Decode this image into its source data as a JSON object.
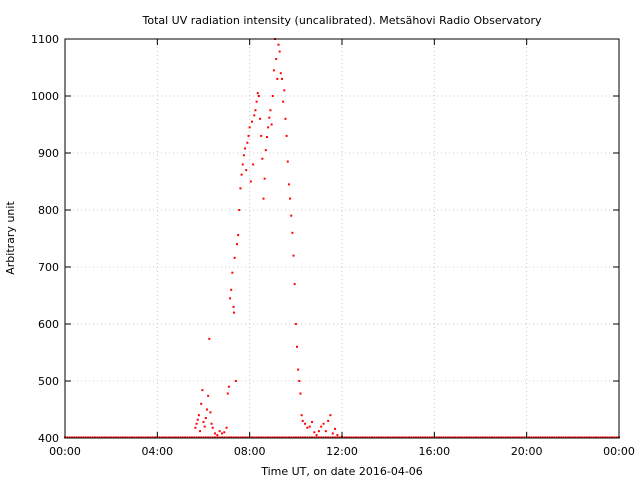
{
  "chart_data": {
    "type": "scatter",
    "title": "Total UV radiation intensity (uncalibrated). Metsähovi Radio Observatory",
    "xlabel": "Time UT, on date 2016-04-06",
    "ylabel": "Arbitrary unit",
    "xlim": [
      0,
      24
    ],
    "ylim": [
      400,
      1100
    ],
    "grid": true,
    "x_ticks": [
      {
        "value": 0,
        "label": "00:00"
      },
      {
        "value": 4,
        "label": "04:00"
      },
      {
        "value": 8,
        "label": "08:00"
      },
      {
        "value": 12,
        "label": "12:00"
      },
      {
        "value": 16,
        "label": "16:00"
      },
      {
        "value": 20,
        "label": "20:00"
      },
      {
        "value": 24,
        "label": "00:00"
      }
    ],
    "y_ticks": [
      {
        "value": 400,
        "label": "400"
      },
      {
        "value": 500,
        "label": "500"
      },
      {
        "value": 600,
        "label": "600"
      },
      {
        "value": 700,
        "label": "700"
      },
      {
        "value": 800,
        "label": "800"
      },
      {
        "value": 900,
        "label": "900"
      },
      {
        "value": 1000,
        "label": "1000"
      },
      {
        "value": 1100,
        "label": "1100"
      }
    ],
    "colors": {
      "points": "#ff0000",
      "grid": "#c8c8c8",
      "axes": "#000000"
    },
    "series": [
      {
        "baseline": {
          "value": 401,
          "x_start": 0,
          "x_end": 24,
          "step": 0.1
        },
        "points": [
          [
            5.65,
            418
          ],
          [
            5.7,
            425
          ],
          [
            5.75,
            432
          ],
          [
            5.8,
            440
          ],
          [
            5.85,
            412
          ],
          [
            5.9,
            460
          ],
          [
            5.95,
            484
          ],
          [
            6.0,
            428
          ],
          [
            6.05,
            420
          ],
          [
            6.1,
            435
          ],
          [
            6.15,
            450
          ],
          [
            6.2,
            474
          ],
          [
            6.25,
            574
          ],
          [
            6.3,
            445
          ],
          [
            6.35,
            425
          ],
          [
            6.4,
            418
          ],
          [
            6.5,
            408
          ],
          [
            6.6,
            405
          ],
          [
            6.7,
            412
          ],
          [
            6.8,
            408
          ],
          [
            6.9,
            410
          ],
          [
            7.0,
            418
          ],
          [
            7.05,
            478
          ],
          [
            7.1,
            490
          ],
          [
            7.15,
            645
          ],
          [
            7.2,
            660
          ],
          [
            7.25,
            690
          ],
          [
            7.3,
            630
          ],
          [
            7.32,
            620
          ],
          [
            7.35,
            716
          ],
          [
            7.4,
            500
          ],
          [
            7.45,
            740
          ],
          [
            7.5,
            756
          ],
          [
            7.55,
            800
          ],
          [
            7.6,
            838
          ],
          [
            7.65,
            862
          ],
          [
            7.7,
            880
          ],
          [
            7.75,
            896
          ],
          [
            7.8,
            908
          ],
          [
            7.85,
            870
          ],
          [
            7.9,
            918
          ],
          [
            7.95,
            930
          ],
          [
            8.0,
            945
          ],
          [
            8.05,
            850
          ],
          [
            8.1,
            955
          ],
          [
            8.15,
            880
          ],
          [
            8.2,
            966
          ],
          [
            8.25,
            975
          ],
          [
            8.3,
            990
          ],
          [
            8.35,
            1005
          ],
          [
            8.4,
            1000
          ],
          [
            8.45,
            960
          ],
          [
            8.5,
            930
          ],
          [
            8.55,
            890
          ],
          [
            8.6,
            820
          ],
          [
            8.65,
            855
          ],
          [
            8.7,
            905
          ],
          [
            8.75,
            928
          ],
          [
            8.8,
            945
          ],
          [
            8.85,
            962
          ],
          [
            8.9,
            975
          ],
          [
            8.95,
            950
          ],
          [
            9.0,
            1000
          ],
          [
            9.05,
            1045
          ],
          [
            9.1,
            1100
          ],
          [
            9.15,
            1065
          ],
          [
            9.2,
            1030
          ],
          [
            9.25,
            1090
          ],
          [
            9.3,
            1078
          ],
          [
            9.35,
            1040
          ],
          [
            9.4,
            1030
          ],
          [
            9.45,
            990
          ],
          [
            9.5,
            1010
          ],
          [
            9.55,
            960
          ],
          [
            9.6,
            930
          ],
          [
            9.65,
            885
          ],
          [
            9.7,
            845
          ],
          [
            9.75,
            820
          ],
          [
            9.8,
            790
          ],
          [
            9.85,
            760
          ],
          [
            9.9,
            720
          ],
          [
            9.95,
            670
          ],
          [
            10.0,
            600
          ],
          [
            10.05,
            560
          ],
          [
            10.1,
            520
          ],
          [
            10.15,
            500
          ],
          [
            10.2,
            478
          ],
          [
            10.25,
            440
          ],
          [
            10.3,
            430
          ],
          [
            10.4,
            425
          ],
          [
            10.5,
            418
          ],
          [
            10.6,
            420
          ],
          [
            10.7,
            428
          ],
          [
            10.8,
            410
          ],
          [
            10.9,
            405
          ],
          [
            11.0,
            412
          ],
          [
            11.1,
            420
          ],
          [
            11.2,
            425
          ],
          [
            11.3,
            412
          ],
          [
            11.4,
            430
          ],
          [
            11.5,
            440
          ],
          [
            11.6,
            408
          ],
          [
            11.7,
            416
          ],
          [
            11.8,
            405
          ],
          [
            12.0,
            402
          ]
        ]
      }
    ]
  }
}
